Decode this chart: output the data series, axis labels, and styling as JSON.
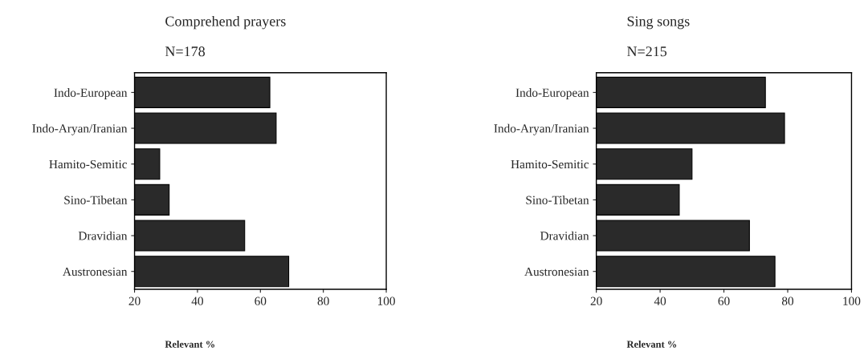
{
  "chart_data": [
    {
      "type": "bar",
      "orientation": "horizontal",
      "title": "Comprehend prayers",
      "subtitle": "N=178",
      "xlabel": "Relevant %",
      "categories": [
        "Indo-European",
        "Indo-Aryan/Iranian",
        "Hamito-Semitic",
        "Sino-Tibetan",
        "Dravidian",
        "Austronesian"
      ],
      "values": [
        63,
        65,
        28,
        31,
        55,
        69
      ],
      "color": "#2a2a2a",
      "xlim": [
        20,
        100
      ],
      "xticks": [
        20,
        40,
        60,
        80,
        100
      ],
      "grid": false,
      "legend": false
    },
    {
      "type": "bar",
      "orientation": "horizontal",
      "title": "Sing songs",
      "subtitle": "N=215",
      "xlabel": "Relevant %",
      "categories": [
        "Indo-European",
        "Indo-Aryan/Iranian",
        "Hamito-Semitic",
        "Sino-Tibetan",
        "Dravidian",
        "Austronesian"
      ],
      "values": [
        73,
        79,
        50,
        46,
        68,
        76
      ],
      "color": "#2a2a2a",
      "xlim": [
        20,
        100
      ],
      "xticks": [
        20,
        40,
        60,
        80,
        100
      ],
      "grid": false,
      "legend": false
    }
  ]
}
